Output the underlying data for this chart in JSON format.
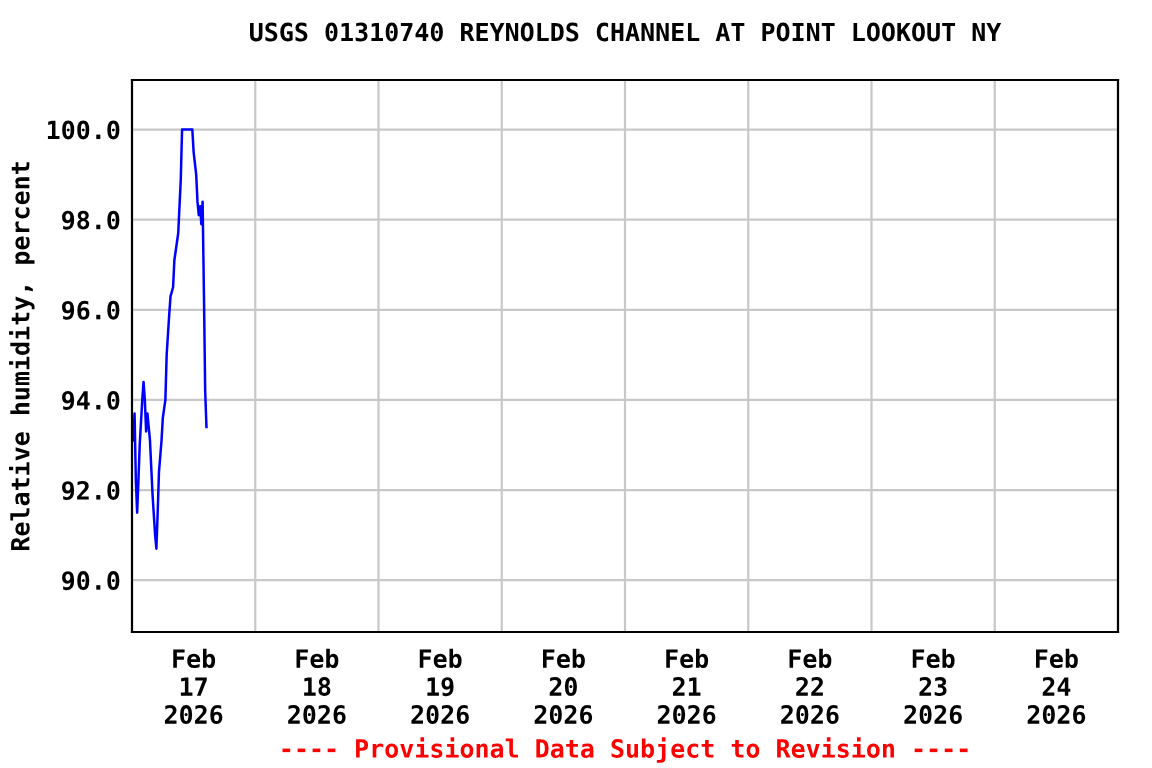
{
  "chart_data": {
    "type": "line",
    "title": "USGS 01310740 REYNOLDS CHANNEL AT POINT LOOKOUT NY",
    "ylabel": "Relative humidity, percent",
    "annotations": [
      "---- Provisional Data Subject to Revision ----"
    ],
    "x": [
      "2026-02-17T00:00",
      "2026-02-17T00:15",
      "2026-02-17T00:30",
      "2026-02-17T00:45",
      "2026-02-17T01:00",
      "2026-02-17T01:15",
      "2026-02-17T01:30",
      "2026-02-17T02:00",
      "2026-02-17T02:15",
      "2026-02-17T02:30",
      "2026-02-17T02:45",
      "2026-02-17T03:00",
      "2026-02-17T03:15",
      "2026-02-17T03:30",
      "2026-02-17T03:45",
      "2026-02-17T04:00",
      "2026-02-17T04:30",
      "2026-02-17T04:45",
      "2026-02-17T05:00",
      "2026-02-17T05:15",
      "2026-02-17T05:45",
      "2026-02-17T06:00",
      "2026-02-17T06:30",
      "2026-02-17T06:45",
      "2026-02-17T07:15",
      "2026-02-17T07:30",
      "2026-02-17T08:00",
      "2026-02-17T08:15",
      "2026-02-17T08:45",
      "2026-02-17T09:00",
      "2026-02-17T09:30",
      "2026-02-17T09:45",
      "2026-02-17T11:45",
      "2026-02-17T12:00",
      "2026-02-17T12:30",
      "2026-02-17T12:45",
      "2026-02-17T13:00",
      "2026-02-17T13:15",
      "2026-02-17T13:30",
      "2026-02-17T13:45",
      "2026-02-17T14:00",
      "2026-02-17T14:15",
      "2026-02-17T14:30"
    ],
    "series": [
      {
        "color": "#0000ff",
        "values": [
          93.4,
          93.1,
          93.7,
          92.2,
          91.5,
          92.2,
          93.0,
          94.0,
          94.4,
          94.0,
          93.3,
          93.7,
          93.4,
          93.1,
          92.5,
          91.9,
          91.0,
          90.7,
          91.5,
          92.4,
          93.1,
          93.6,
          94.0,
          95.0,
          95.9,
          96.3,
          96.5,
          97.1,
          97.5,
          97.7,
          98.9,
          100.0,
          100.0,
          99.5,
          99.0,
          98.4,
          98.1,
          98.3,
          97.9,
          98.4,
          96.4,
          94.2,
          93.4
        ]
      }
    ],
    "xlim": [
      "2026-02-17T00:00",
      "2026-02-25T00:00"
    ],
    "xticks": [
      {
        "value": "2026-02-17T12:00",
        "label": "Feb\n17\n2026"
      },
      {
        "value": "2026-02-18T00:00",
        "label": null
      },
      {
        "value": "2026-02-18T12:00",
        "label": "Feb\n18\n2026"
      },
      {
        "value": "2026-02-19T00:00",
        "label": null
      },
      {
        "value": "2026-02-19T12:00",
        "label": "Feb\n19\n2026"
      },
      {
        "value": "2026-02-20T00:00",
        "label": null
      },
      {
        "value": "2026-02-20T12:00",
        "label": "Feb\n20\n2026"
      },
      {
        "value": "2026-02-21T00:00",
        "label": null
      },
      {
        "value": "2026-02-21T12:00",
        "label": "Feb\n21\n2026"
      },
      {
        "value": "2026-02-22T00:00",
        "label": null
      },
      {
        "value": "2026-02-22T12:00",
        "label": "Feb\n22\n2026"
      },
      {
        "value": "2026-02-23T00:00",
        "label": null
      },
      {
        "value": "2026-02-23T12:00",
        "label": "Feb\n23\n2026"
      },
      {
        "value": "2026-02-24T00:00",
        "label": null
      },
      {
        "value": "2026-02-24T12:00",
        "label": "Feb\n24\n2026"
      }
    ],
    "ylim": [
      88.85,
      101.1
    ],
    "yticks": [
      {
        "value": 90,
        "label": "90.0"
      },
      {
        "value": 92,
        "label": "92.0"
      },
      {
        "value": 94,
        "label": "94.0"
      },
      {
        "value": 96,
        "label": "96.0"
      },
      {
        "value": 98,
        "label": "98.0"
      },
      {
        "value": 100,
        "label": "100.0"
      }
    ],
    "grid": true,
    "legend": false,
    "marker": "none",
    "line_style": "solid"
  }
}
